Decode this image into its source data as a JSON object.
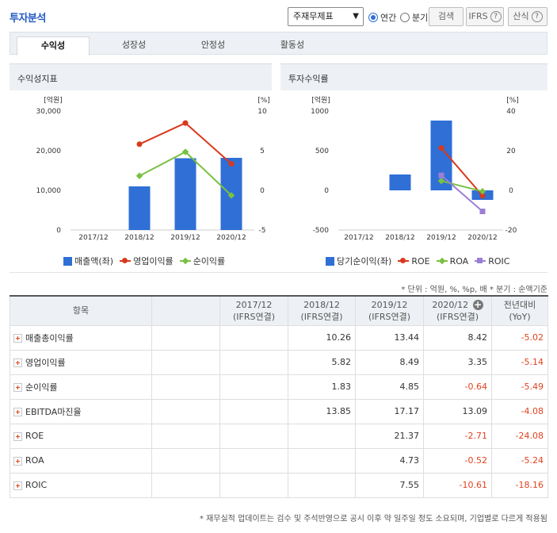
{
  "header": {
    "title": "투자분석",
    "select_value": "주재무제표",
    "radio_annual": "연간",
    "radio_quarter": "분기",
    "search_button": "검색",
    "ifrs_button": "IFRS",
    "formula_button": "산식",
    "help_icon": "?"
  },
  "tabs": [
    "수익성",
    "성장성",
    "안정성",
    "활동성"
  ],
  "panels": {
    "left_title": "수익성지표",
    "right_title": "투자수익률"
  },
  "colors": {
    "bar": "#2f6fd6",
    "red_line": "#d9391c",
    "green_line": "#79c142",
    "purple_line": "#9b7fd6",
    "negative_text": "#e0431f",
    "accent": "#2358c6"
  },
  "chart_data": [
    {
      "type": "bar",
      "title": "수익성지표",
      "categories": [
        "2017/12",
        "2018/12",
        "2019/12",
        "2020/12"
      ],
      "y_left_label": "[억원]",
      "y_right_label": "[%]",
      "y_left_ticks": [
        "30,000",
        "20,000",
        "10,000",
        "0"
      ],
      "y_right_ticks": [
        "10",
        "5",
        "0",
        "-5"
      ],
      "ylim_left": [
        0,
        30000
      ],
      "ylim_right": [
        -5,
        10
      ],
      "series": [
        {
          "name": "매출액(좌)",
          "type": "bar",
          "axis": "left",
          "values": [
            null,
            11000,
            18100,
            18200
          ]
        },
        {
          "name": "영업이익률",
          "type": "line",
          "axis": "right",
          "marker": "circle",
          "values": [
            null,
            5.82,
            8.49,
            3.35
          ]
        },
        {
          "name": "순이익률",
          "type": "line",
          "axis": "right",
          "marker": "diamond",
          "values": [
            null,
            1.83,
            4.85,
            -0.64
          ]
        }
      ]
    },
    {
      "type": "bar",
      "title": "투자수익률",
      "categories": [
        "2017/12",
        "2018/12",
        "2019/12",
        "2020/12"
      ],
      "y_left_label": "[억원]",
      "y_right_label": "[%]",
      "y_left_ticks": [
        "1000",
        "500",
        "0",
        "-500"
      ],
      "y_right_ticks": [
        "40",
        "20",
        "0",
        "-20"
      ],
      "ylim_left": [
        -500,
        1000
      ],
      "ylim_right": [
        -20,
        40
      ],
      "series": [
        {
          "name": "당기순이익(좌)",
          "type": "bar",
          "axis": "left",
          "values": [
            null,
            200,
            880,
            -120
          ]
        },
        {
          "name": "ROE",
          "type": "line",
          "axis": "right",
          "marker": "circle",
          "values": [
            null,
            null,
            21.37,
            -2.71
          ]
        },
        {
          "name": "ROA",
          "type": "line",
          "axis": "right",
          "marker": "diamond",
          "values": [
            null,
            null,
            4.73,
            -0.52
          ]
        },
        {
          "name": "ROIC",
          "type": "line",
          "axis": "right",
          "marker": "square",
          "values": [
            null,
            null,
            7.55,
            -10.61
          ]
        }
      ]
    }
  ],
  "unit_note": "* 단위 : 억원, %, %p, 배   * 분기 : 순액기준",
  "table": {
    "columns": [
      {
        "line1": "항목",
        "line2": ""
      },
      {
        "line1": "",
        "line2": ""
      },
      {
        "line1": "2017/12",
        "line2": "(IFRS연결)"
      },
      {
        "line1": "2018/12",
        "line2": "(IFRS연결)"
      },
      {
        "line1": "2019/12",
        "line2": "(IFRS연결)"
      },
      {
        "line1": "2020/12",
        "line2": "(IFRS연결)"
      },
      {
        "line1": "전년대비",
        "line2": "(YoY)"
      }
    ],
    "rows": [
      {
        "label": "매출총이익률",
        "values": [
          "",
          "",
          "10.26",
          "13.44",
          "8.42",
          "-5.02"
        ]
      },
      {
        "label": "영업이익률",
        "values": [
          "",
          "",
          "5.82",
          "8.49",
          "3.35",
          "-5.14"
        ]
      },
      {
        "label": "순이익률",
        "values": [
          "",
          "",
          "1.83",
          "4.85",
          "-0.64",
          "-5.49"
        ]
      },
      {
        "label": "EBITDA마진율",
        "values": [
          "",
          "",
          "13.85",
          "17.17",
          "13.09",
          "-4.08"
        ]
      },
      {
        "label": "ROE",
        "values": [
          "",
          "",
          "",
          "21.37",
          "-2.71",
          "-24.08"
        ]
      },
      {
        "label": "ROA",
        "values": [
          "",
          "",
          "",
          "4.73",
          "-0.52",
          "-5.24"
        ]
      },
      {
        "label": "ROIC",
        "values": [
          "",
          "",
          "",
          "7.55",
          "-10.61",
          "-18.16"
        ]
      }
    ]
  },
  "footnote": "* 재무실적 업데이트는 검수 및 주석반영으로 공시 이후 약 일주일 정도 소요되며, 기업별로 다르게 적용됨"
}
